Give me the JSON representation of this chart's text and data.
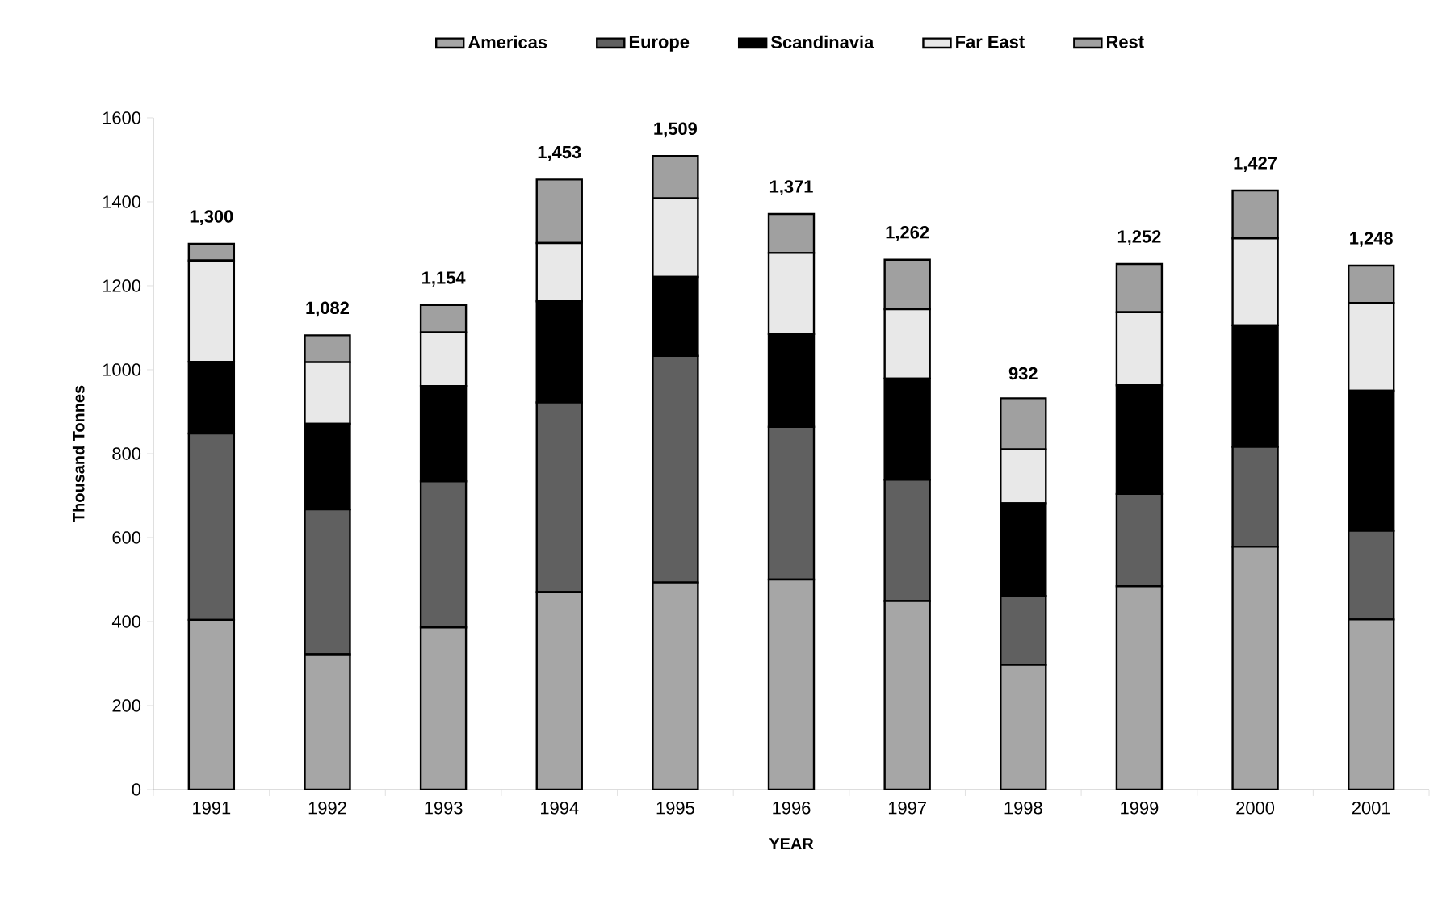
{
  "chart_data": {
    "type": "bar",
    "stacked": true,
    "xlabel": "YEAR",
    "ylabel": "Thousand Tonnes",
    "categories": [
      "1991",
      "1992",
      "1993",
      "1994",
      "1995",
      "1996",
      "1997",
      "1998",
      "1999",
      "2000",
      "2001"
    ],
    "series": [
      {
        "name": "Americas",
        "color": "#a6a6a6",
        "values": [
          404,
          322,
          386,
          470,
          493,
          500,
          449,
          297,
          484,
          578,
          405
        ]
      },
      {
        "name": "Europe",
        "color": "#606060",
        "values": [
          444,
          345,
          348,
          452,
          540,
          364,
          289,
          164,
          220,
          238,
          211
        ]
      },
      {
        "name": "Scandinavia",
        "color": "#000000",
        "values": [
          171,
          204,
          227,
          241,
          188,
          221,
          241,
          221,
          259,
          290,
          334
        ]
      },
      {
        "name": "Far East",
        "color": "#e8e8e8",
        "values": [
          241,
          147,
          128,
          139,
          187,
          193,
          165,
          128,
          174,
          207,
          209
        ]
      },
      {
        "name": "Rest",
        "color": "#a0a0a0",
        "values": [
          40,
          64,
          65,
          151,
          101,
          93,
          118,
          122,
          115,
          114,
          89
        ]
      }
    ],
    "totals": [
      "1,300",
      "1,082",
      "1,154",
      "1,453",
      "1,509",
      "1,371",
      "1,262",
      "932",
      "1,252",
      "1,427",
      "1,248"
    ],
    "ylim": [
      0,
      1600
    ],
    "yticks": [
      0,
      200,
      400,
      600,
      800,
      1000,
      1200,
      1400,
      1600
    ],
    "grid": false,
    "legend": "top"
  }
}
